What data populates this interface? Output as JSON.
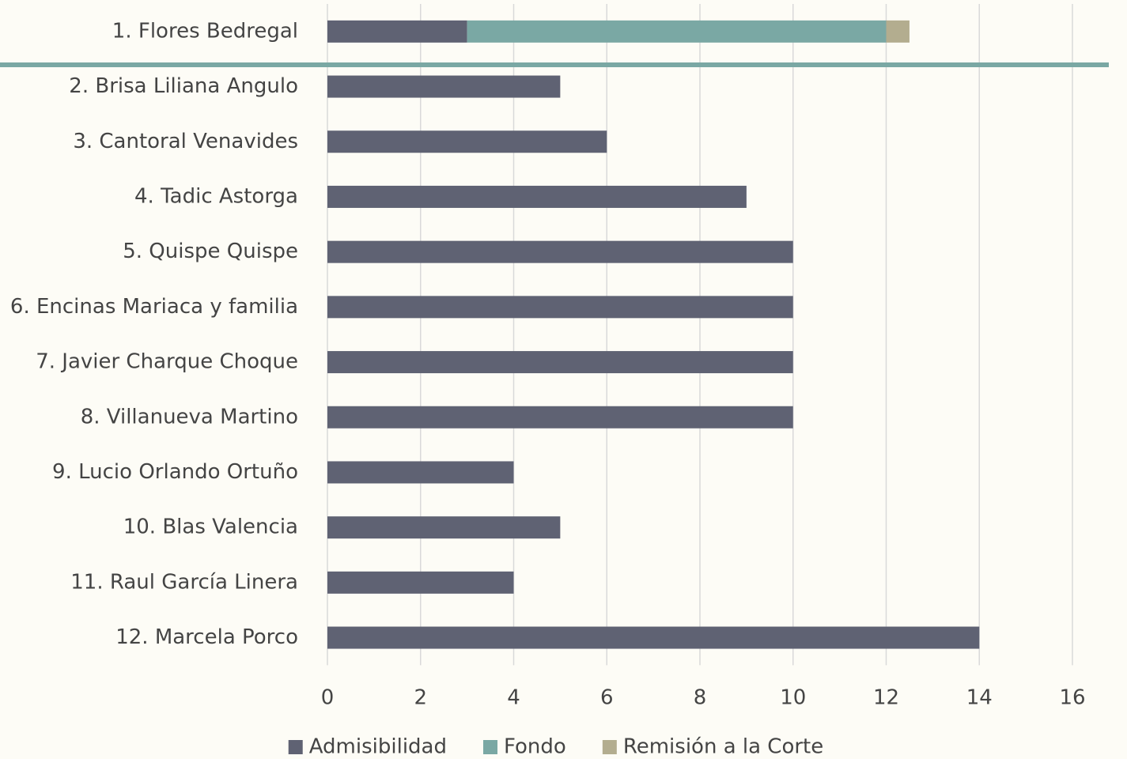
{
  "chart_data": {
    "type": "stacked-barh",
    "categories": [
      "1. Flores Bedregal",
      "2. Brisa Liliana Angulo",
      "3. Cantoral Venavides",
      "4. Tadic Astorga",
      "5. Quispe Quispe",
      "6. Encinas Mariaca y familia",
      "7. Javier Charque Choque",
      "8. Villanueva Martino",
      "9. Lucio Orlando Ortuño",
      "10. Blas Valencia",
      "11. Raul García Linera",
      "12. Marcela Porco"
    ],
    "series": [
      {
        "name": "Admisibilidad",
        "color": "#5f6273",
        "values": [
          3,
          5,
          6,
          9,
          10,
          10,
          10,
          10,
          4,
          5,
          4,
          14
        ]
      },
      {
        "name": "Fondo",
        "color": "#7aa8a4",
        "values": [
          9,
          0,
          0,
          0,
          0,
          0,
          0,
          0,
          0,
          0,
          0,
          0
        ]
      },
      {
        "name": "Remisión a la Corte",
        "color": "#b3ad8f",
        "values": [
          0.5,
          0,
          0,
          0,
          0,
          0,
          0,
          0,
          0,
          0,
          0,
          0
        ]
      }
    ],
    "xlim": [
      0,
      16
    ],
    "xticks": [
      0,
      2,
      4,
      6,
      8,
      10,
      12,
      14,
      16
    ],
    "grid": true,
    "legend": "bottom"
  }
}
